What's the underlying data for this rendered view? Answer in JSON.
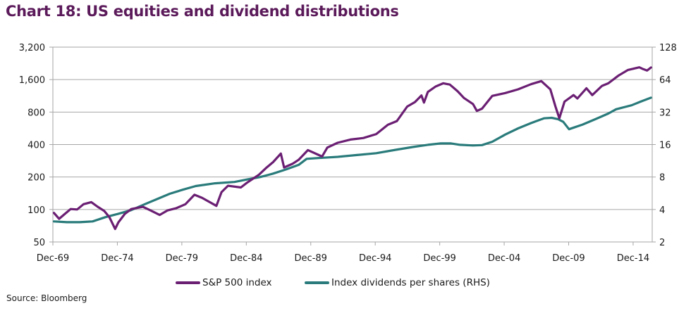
{
  "title": "Chart 18: US equities and dividend distributions",
  "source": "Source: Bloomberg",
  "colors": {
    "title": "#5b1a5a",
    "sp500": "#6b1f73",
    "dividends": "#2a7b7b",
    "grid": "#a6a6a6",
    "axis": "#a6a6a6"
  },
  "chart_data": {
    "type": "line",
    "title": "Chart 18: US equities and dividend distributions",
    "xlabel": "",
    "ylabel": "",
    "y_scale": "log2",
    "x_range": [
      1969.92,
      2016.4
    ],
    "x_tick_labels": [
      "Dec-69",
      "Dec-74",
      "Dec-79",
      "Dec-84",
      "Dec-89",
      "Dec-94",
      "Dec-99",
      "Dec-04",
      "Dec-09",
      "Dec-14"
    ],
    "x_tick_values": [
      1969.92,
      1974.92,
      1979.92,
      1984.92,
      1989.92,
      1994.92,
      1999.92,
      2004.92,
      2009.92,
      2014.92
    ],
    "y_left": {
      "range": [
        50,
        3200
      ],
      "tick_labels": [
        "50",
        "100",
        "200",
        "400",
        "800",
        "1,600",
        "3,200"
      ],
      "tick_values": [
        50,
        100,
        200,
        400,
        800,
        1600,
        3200
      ]
    },
    "y_right": {
      "range": [
        2,
        128
      ],
      "tick_labels": [
        "2",
        "4",
        "8",
        "16",
        "32",
        "64",
        "128"
      ],
      "tick_values": [
        2,
        4,
        8,
        16,
        32,
        64,
        128
      ]
    },
    "grid": "horizontal",
    "legend_position": "bottom",
    "series": [
      {
        "name": "S&P 500 index",
        "axis": "left",
        "x": [
          1970.0,
          1970.4,
          1970.8,
          1971.3,
          1971.8,
          1972.3,
          1972.9,
          1973.4,
          1973.9,
          1974.3,
          1974.75,
          1975.0,
          1975.5,
          1976.0,
          1976.9,
          1977.5,
          1978.2,
          1978.8,
          1979.5,
          1980.2,
          1980.9,
          1981.5,
          1982.6,
          1983.0,
          1983.5,
          1984.5,
          1985.0,
          1985.9,
          1986.5,
          1987.0,
          1987.6,
          1987.85,
          1988.5,
          1989.0,
          1989.7,
          1990.8,
          1991.2,
          1992.0,
          1993.0,
          1994.0,
          1995.0,
          1995.9,
          1996.6,
          1997.4,
          1998.0,
          1998.5,
          1998.7,
          1999.0,
          1999.6,
          2000.2,
          2000.7,
          2001.3,
          2001.8,
          2002.5,
          2002.8,
          2003.2,
          2004.0,
          2005.0,
          2006.0,
          2007.0,
          2007.8,
          2008.5,
          2008.9,
          2009.2,
          2009.6,
          2010.3,
          2010.6,
          2011.3,
          2011.75,
          2012.5,
          2013.0,
          2013.8,
          2014.5,
          2015.4,
          2015.7,
          2016.0,
          2016.3
        ],
        "values": [
          93,
          82,
          90,
          101,
          100,
          112,
          117,
          106,
          97,
          85,
          66,
          76,
          91,
          101,
          106,
          98,
          89,
          98,
          103,
          112,
          137,
          128,
          108,
          145,
          166,
          160,
          178,
          210,
          245,
          275,
          330,
          245,
          265,
          290,
          355,
          310,
          375,
          415,
          445,
          460,
          500,
          610,
          660,
          900,
          990,
          1140,
          980,
          1230,
          1380,
          1480,
          1440,
          1250,
          1080,
          950,
          820,
          860,
          1130,
          1200,
          1300,
          1450,
          1550,
          1300,
          900,
          700,
          1000,
          1150,
          1070,
          1330,
          1150,
          1400,
          1480,
          1750,
          1960,
          2080,
          2000,
          1940,
          2070
        ]
      },
      {
        "name": "Index dividends per shares (RHS)",
        "axis": "right",
        "x": [
          1970.0,
          1971.0,
          1972.0,
          1973.0,
          1974.0,
          1975.0,
          1976.0,
          1977.0,
          1978.0,
          1979.0,
          1980.0,
          1981.0,
          1982.5,
          1984.0,
          1985.0,
          1986.0,
          1987.0,
          1988.0,
          1989.0,
          1989.6,
          1990.5,
          1992.0,
          1993.5,
          1995.0,
          1996.5,
          1998.0,
          1999.0,
          2000.0,
          2000.8,
          2001.5,
          2002.5,
          2003.2,
          2004.0,
          2005.0,
          2006.0,
          2007.0,
          2008.0,
          2008.6,
          2009.1,
          2009.5,
          2009.95,
          2011.0,
          2012.0,
          2013.0,
          2013.6,
          2014.0,
          2014.8,
          2015.5,
          2016.3
        ],
        "values": [
          3.1,
          3.05,
          3.05,
          3.1,
          3.4,
          3.65,
          3.95,
          4.45,
          5.0,
          5.6,
          6.1,
          6.6,
          7.0,
          7.2,
          7.6,
          8.0,
          8.6,
          9.4,
          10.4,
          11.8,
          12.0,
          12.3,
          12.8,
          13.3,
          14.3,
          15.3,
          15.9,
          16.4,
          16.4,
          15.9,
          15.7,
          15.8,
          17.0,
          19.8,
          22.6,
          25.3,
          28.0,
          28.3,
          27.5,
          26.0,
          22.2,
          24.5,
          27.5,
          31.0,
          34.0,
          35.0,
          37.0,
          40.0,
          43.5
        ]
      }
    ]
  }
}
